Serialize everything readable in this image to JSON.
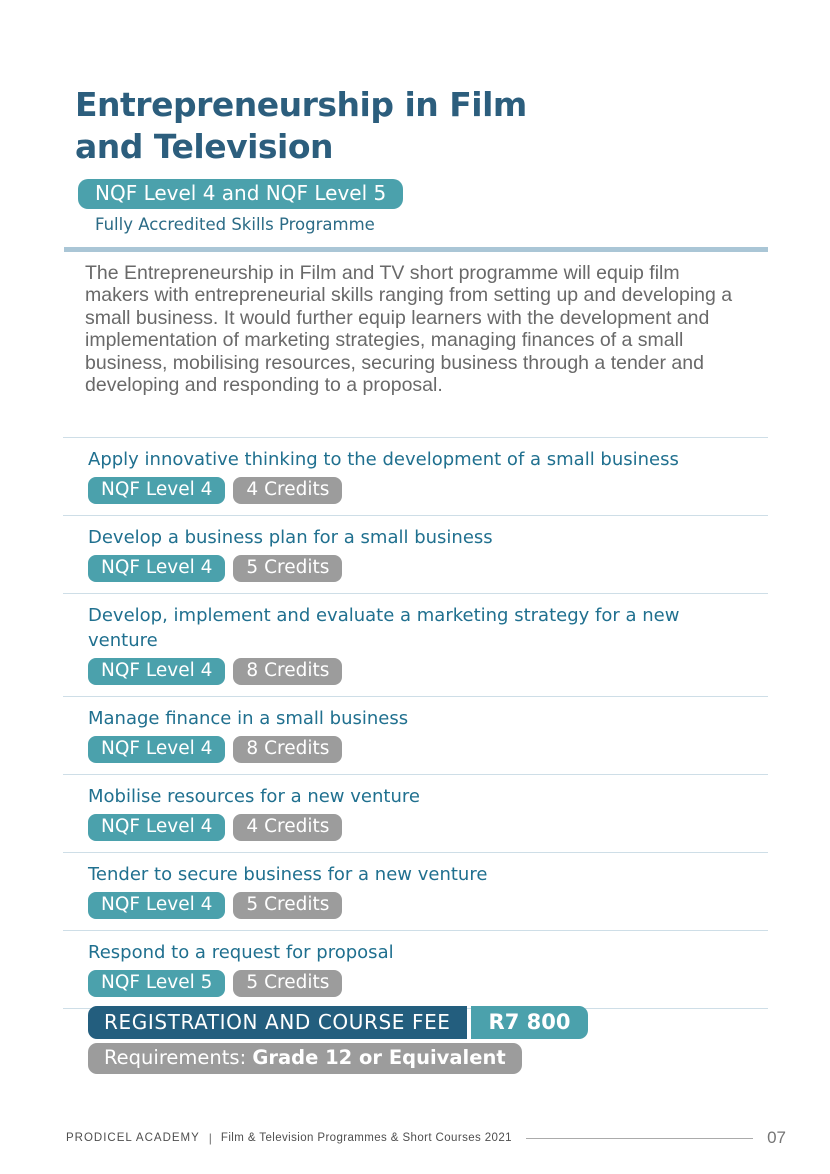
{
  "header": {
    "title_line1": "Entrepreneurship in Film",
    "title_line2": "and Television",
    "level_badge": "NQF Level 4 and NQF Level 5",
    "subtitle": "Fully Accredited Skills Programme",
    "description": "The Entrepreneurship in Film and TV short programme will equip film makers with entrepreneurial skills ranging from setting up and developing a small business. It would further equip learners with the development and implementation of marketing strategies, managing finances of a small business, mobilising resources, securing business through a tender and developing and responding to a proposal."
  },
  "modules": [
    {
      "title": "Apply innovative thinking to the development of a small business",
      "level": "NQF Level 4",
      "credits": "4 Credits"
    },
    {
      "title": "Develop a business plan for a small business",
      "level": "NQF Level 4",
      "credits": "5 Credits"
    },
    {
      "title": "Develop, implement and evaluate a marketing strategy for a new venture",
      "level": "NQF Level 4",
      "credits": "8 Credits"
    },
    {
      "title": "Manage finance in a small business",
      "level": "NQF Level 4",
      "credits": "8 Credits"
    },
    {
      "title": "Mobilise resources for a new venture",
      "level": "NQF Level 4",
      "credits": "4 Credits"
    },
    {
      "title": "Tender to secure business for a new venture",
      "level": "NQF Level 4",
      "credits": "5 Credits"
    },
    {
      "title": "Respond to a request for proposal",
      "level": "NQF Level 5",
      "credits": "5 Credits"
    }
  ],
  "fee": {
    "label": "REGISTRATION AND COURSE FEE",
    "amount": "R7 800",
    "requirements_label": "Requirements: ",
    "requirements_value": "Grade 12 or Equivalent"
  },
  "footer": {
    "brand": "PRODICEL ACADEMY",
    "separator": "|",
    "doc_title": "Film & Television Programmes & Short Courses 2021",
    "page_number": "07"
  },
  "colors": {
    "teal_accent": "#4BA1AC",
    "title_blue": "#2C5E7D",
    "module_title_blue": "#20708F",
    "fee_dark_blue": "#235E7E",
    "badge_gray": "#9C9C9C",
    "thick_rule": "#AAC6D6",
    "row_divider": "#CEDEE7",
    "body_text_gray": "#696969"
  }
}
